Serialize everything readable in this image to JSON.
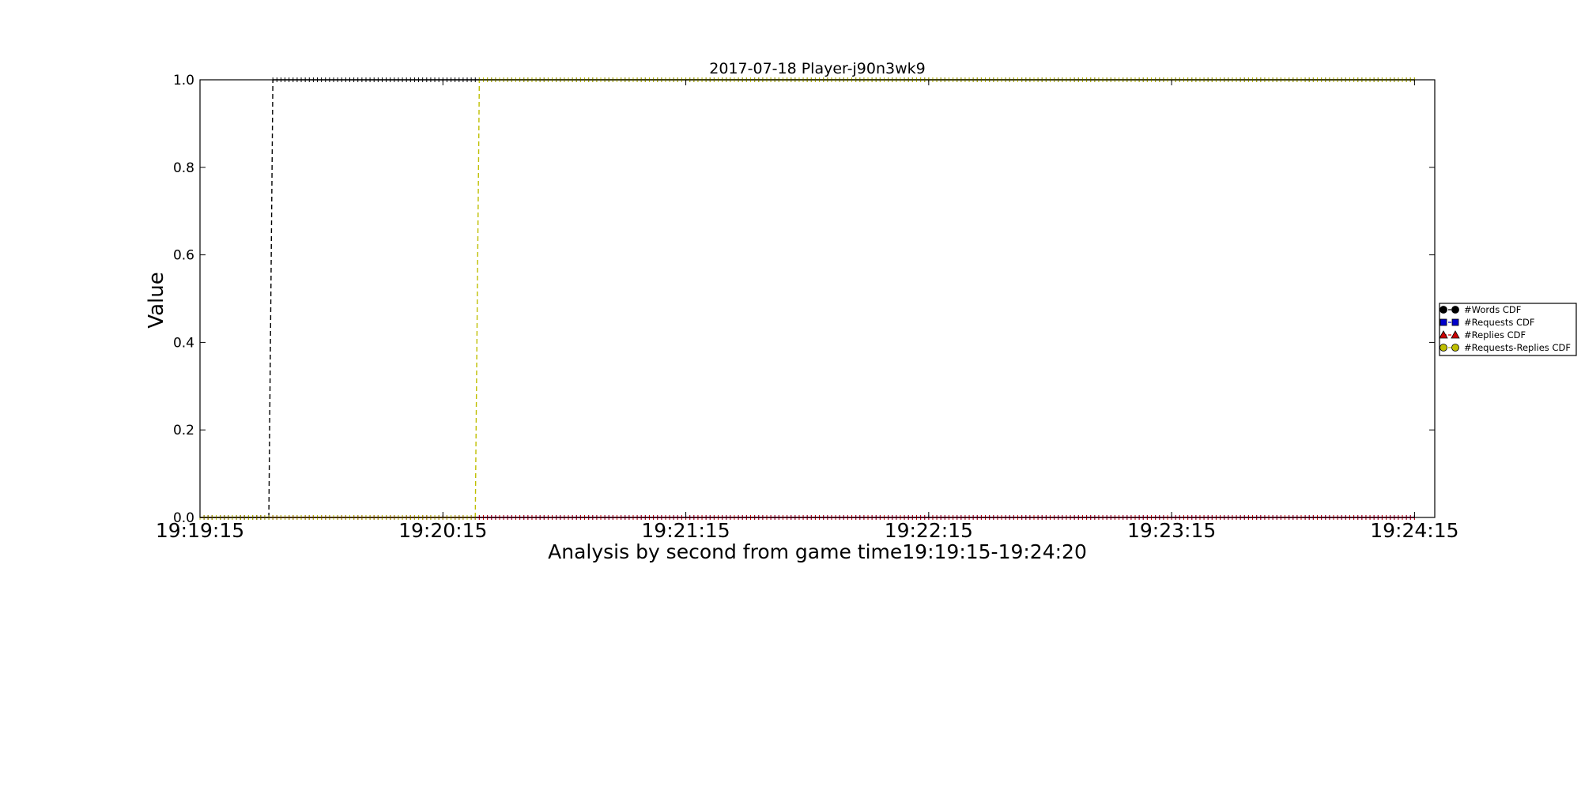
{
  "chart_data": {
    "type": "line",
    "title": "2017-07-18 Player-j90n3wk9",
    "xlabel": "Analysis by second from game time19:19:15-19:24:20",
    "ylabel": "Value",
    "xlim": [
      "19:19:15",
      "19:24:20"
    ],
    "ylim": [
      0.0,
      1.0
    ],
    "grid": false,
    "legend_position": "right",
    "x_ticks": [
      "19:19:15",
      "19:20:15",
      "19:21:15",
      "19:22:15",
      "19:23:15",
      "19:24:15"
    ],
    "y_ticks": [
      "0.0",
      "0.2",
      "0.4",
      "0.6",
      "0.8",
      "1.0"
    ],
    "x_range": {
      "start": "19:19:15",
      "end": "19:24:15",
      "step_seconds": 1
    },
    "series": [
      {
        "name": "#Words CDF",
        "color": "#000000",
        "marker": "circle",
        "step_at": "19:19:33",
        "values_before": 0.0,
        "values_after": 1.0
      },
      {
        "name": "#Requests CDF",
        "color": "#0000cc",
        "marker": "square",
        "step_at": null,
        "values_before": 0.0,
        "values_after": 0.0
      },
      {
        "name": "#Replies CDF",
        "color": "#cc0000",
        "marker": "triangle",
        "step_at": null,
        "values_before": 0.0,
        "values_after": 0.0
      },
      {
        "name": "#Requests-Replies CDF",
        "color": "#bfbf00",
        "marker": "circle",
        "step_at": "19:20:24",
        "values_before": 0.0,
        "values_after": 1.0
      }
    ]
  }
}
